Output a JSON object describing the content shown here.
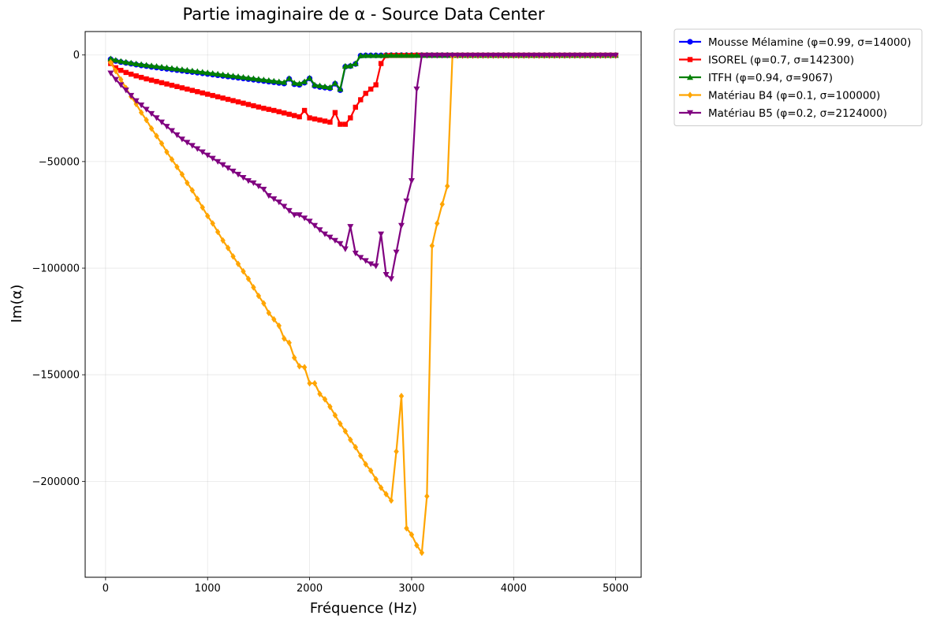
{
  "chart_data": {
    "type": "line",
    "title": "Partie imaginaire de α - Source Data Center",
    "xlabel": "Fréquence (Hz)",
    "ylabel": "Im(α)",
    "xlim": [
      -200,
      5250
    ],
    "ylim": [
      -245000,
      11000
    ],
    "xticks": [
      0,
      1000,
      2000,
      3000,
      4000,
      5000
    ],
    "yticks": [
      0,
      -50000,
      -100000,
      -150000,
      -200000
    ],
    "xtick_labels": [
      "0",
      "1000",
      "2000",
      "3000",
      "4000",
      "5000"
    ],
    "ytick_labels": [
      "0",
      "−50000",
      "−100000",
      "−150000",
      "−200000"
    ],
    "grid": true,
    "legend_position": "outside-top-right",
    "series": [
      {
        "name": "Mousse Mélamine (φ=0.99, σ=14000)",
        "color": "#0000ff",
        "marker": "circle",
        "x": [
          50,
          100,
          150,
          200,
          250,
          300,
          350,
          400,
          450,
          500,
          550,
          600,
          650,
          700,
          750,
          800,
          850,
          900,
          950,
          1000,
          1050,
          1100,
          1150,
          1200,
          1250,
          1300,
          1350,
          1400,
          1450,
          1500,
          1550,
          1600,
          1650,
          1700,
          1750,
          1800,
          1850,
          1900,
          1950,
          2000,
          2050,
          2100,
          2150,
          2200,
          2250,
          2300,
          2350,
          2400,
          2450,
          2500,
          2550,
          2600,
          2650,
          2700,
          2750,
          2800,
          2850,
          2900,
          2950,
          3000,
          3050,
          3100,
          3150,
          3200,
          3250,
          3300,
          3350,
          3400,
          3450,
          3500,
          3550,
          3600,
          3650,
          3700,
          3750,
          3800,
          3850,
          3900,
          3950,
          4000,
          4050,
          4100,
          4150,
          4200,
          4250,
          4300,
          4350,
          4400,
          4450,
          4500,
          4550,
          4600,
          4650,
          4700,
          4750,
          4800,
          4850,
          4900,
          4950,
          5000
        ],
        "y": [
          -2000,
          -2800,
          -3300,
          -3700,
          -4100,
          -4500,
          -4900,
          -5200,
          -5600,
          -5900,
          -6200,
          -6500,
          -6800,
          -7100,
          -7400,
          -7700,
          -8000,
          -8300,
          -8600,
          -8900,
          -9200,
          -9500,
          -9800,
          -10100,
          -10400,
          -10700,
          -11000,
          -11300,
          -11600,
          -11900,
          -12200,
          -12500,
          -12800,
          -13100,
          -13400,
          -11200,
          -13700,
          -14000,
          -13000,
          -11000,
          -14500,
          -15000,
          -15300,
          -15600,
          -13500,
          -16500,
          -5500,
          -5200,
          -4200,
          -300,
          -200,
          -200,
          -200,
          -200,
          -100,
          -100,
          -100,
          -100,
          -100,
          -100,
          -100,
          -100,
          -100,
          -100,
          -100,
          -100,
          -100,
          -100,
          -100,
          -100,
          -100,
          -100,
          -100,
          -100,
          -100,
          -100,
          -100,
          -100,
          -100,
          -100,
          -100,
          -100,
          -100,
          -100,
          -100,
          -100,
          -100,
          -100,
          -100,
          -100,
          -100,
          -100,
          -100,
          -100,
          -100,
          -100,
          -100,
          -100,
          -100,
          -100
        ]
      },
      {
        "name": "ISOREL (φ=0.7, σ=142300)",
        "color": "#ff0000",
        "marker": "square",
        "x": [
          50,
          100,
          150,
          200,
          250,
          300,
          350,
          400,
          450,
          500,
          550,
          600,
          650,
          700,
          750,
          800,
          850,
          900,
          950,
          1000,
          1050,
          1100,
          1150,
          1200,
          1250,
          1300,
          1350,
          1400,
          1450,
          1500,
          1550,
          1600,
          1650,
          1700,
          1750,
          1800,
          1850,
          1900,
          1950,
          2000,
          2050,
          2100,
          2150,
          2200,
          2250,
          2300,
          2350,
          2400,
          2450,
          2500,
          2550,
          2600,
          2650,
          2700,
          2750,
          2800,
          2850,
          2900,
          2950,
          3000,
          3050,
          3100,
          3150,
          3200,
          3250,
          3300,
          3350,
          3400,
          3450,
          3500,
          3550,
          3600,
          3650,
          3700,
          3750,
          3800,
          3850,
          3900,
          3950,
          4000,
          4050,
          4100,
          4150,
          4200,
          4250,
          4300,
          4350,
          4400,
          4450,
          4500,
          4550,
          4600,
          4650,
          4700,
          4750,
          4800,
          4850,
          4900,
          4950,
          5000
        ],
        "y": [
          -4000,
          -6000,
          -7200,
          -8200,
          -9000,
          -9800,
          -10500,
          -11200,
          -11800,
          -12400,
          -13000,
          -13600,
          -14200,
          -14800,
          -15400,
          -16000,
          -16600,
          -17200,
          -17800,
          -18400,
          -19000,
          -19600,
          -20200,
          -20800,
          -21400,
          -22000,
          -22600,
          -23200,
          -23800,
          -24400,
          -25000,
          -25500,
          -26000,
          -26600,
          -27200,
          -27800,
          -28400,
          -29000,
          -26000,
          -29500,
          -30000,
          -30500,
          -31000,
          -31500,
          -27000,
          -32500,
          -32500,
          -29500,
          -24500,
          -21000,
          -18000,
          -16000,
          -14000,
          -4000,
          -300,
          -200,
          -200,
          -200,
          -200,
          -200,
          -100,
          -100,
          -100,
          -100,
          -100,
          -100,
          -100,
          -100,
          -100,
          -100,
          -100,
          -100,
          -100,
          -100,
          -100,
          -100,
          -100,
          -100,
          -100,
          -100,
          -100,
          -100,
          -100,
          -100,
          -100,
          -100,
          -100,
          -100,
          -100,
          -100,
          -100,
          -100,
          -100,
          -100,
          -100,
          -100,
          -100,
          -100,
          -100,
          -100
        ]
      },
      {
        "name": "ITFH (φ=0.94, σ=9067)",
        "color": "#008000",
        "marker": "triangle-up",
        "x": [
          50,
          100,
          150,
          200,
          250,
          300,
          350,
          400,
          450,
          500,
          550,
          600,
          650,
          700,
          750,
          800,
          850,
          900,
          950,
          1000,
          1050,
          1100,
          1150,
          1200,
          1250,
          1300,
          1350,
          1400,
          1450,
          1500,
          1550,
          1600,
          1650,
          1700,
          1750,
          1800,
          1850,
          1900,
          1950,
          2000,
          2050,
          2100,
          2150,
          2200,
          2250,
          2300,
          2350,
          2400,
          2450,
          2500,
          2550,
          2600,
          2650,
          2700,
          2750,
          2800,
          2850,
          2900,
          2950,
          3000,
          3050,
          3100,
          3150,
          3200,
          3250,
          3300,
          3350,
          3400,
          3450,
          3500,
          3550,
          3600,
          3650,
          3700,
          3750,
          3800,
          3850,
          3900,
          3950,
          4000,
          4050,
          4100,
          4150,
          4200,
          4250,
          4300,
          4350,
          4400,
          4450,
          4500,
          4550,
          4600,
          4650,
          4700,
          4750,
          4800,
          4850,
          4900,
          4950,
          5000
        ],
        "y": [
          -1700,
          -2400,
          -2900,
          -3300,
          -3700,
          -4100,
          -4400,
          -4700,
          -5000,
          -5300,
          -5600,
          -5900,
          -6200,
          -6500,
          -6800,
          -7100,
          -7400,
          -7700,
          -8000,
          -8300,
          -8600,
          -8900,
          -9200,
          -9500,
          -9800,
          -10100,
          -10400,
          -10700,
          -11000,
          -11300,
          -11600,
          -11900,
          -12200,
          -12500,
          -12800,
          -11000,
          -13100,
          -13400,
          -12500,
          -10800,
          -14000,
          -14400,
          -14800,
          -15200,
          -13200,
          -16000,
          -5200,
          -5000,
          -4000,
          -300,
          -200,
          -200,
          -200,
          -200,
          -100,
          -100,
          -100,
          -100,
          -100,
          -100,
          -100,
          -100,
          -100,
          -100,
          -100,
          -100,
          -100,
          -100,
          -100,
          -100,
          -100,
          -100,
          -100,
          -100,
          -100,
          -100,
          -100,
          -100,
          -100,
          -100,
          -100,
          -100,
          -100,
          -100,
          -100,
          -100,
          -100,
          -100,
          -100,
          -100,
          -100,
          -100,
          -100,
          -100,
          -100,
          -100,
          -100,
          -100,
          -100,
          -100
        ]
      },
      {
        "name": "Matériau B4 (φ=0.1, σ=100000)",
        "color": "#ffa500",
        "marker": "diamond",
        "x": [
          50,
          100,
          150,
          200,
          250,
          300,
          350,
          400,
          450,
          500,
          550,
          600,
          650,
          700,
          750,
          800,
          850,
          900,
          950,
          1000,
          1050,
          1100,
          1150,
          1200,
          1250,
          1300,
          1350,
          1400,
          1450,
          1500,
          1550,
          1600,
          1650,
          1700,
          1750,
          1800,
          1850,
          1900,
          1950,
          2000,
          2050,
          2100,
          2150,
          2200,
          2250,
          2300,
          2350,
          2400,
          2450,
          2500,
          2550,
          2600,
          2650,
          2700,
          2750,
          2800,
          2850,
          2900,
          2950,
          3000,
          3050,
          3100,
          3150,
          3200,
          3250,
          3300,
          3350,
          3400,
          3450,
          3500,
          3550,
          3600,
          3650,
          3700,
          3750,
          3800,
          3850,
          3900,
          3950,
          4000,
          4050,
          4100,
          4150,
          4200,
          4250,
          4300,
          4350,
          4400,
          4450,
          4500,
          4550,
          4600,
          4650,
          4700,
          4750,
          4800,
          4850,
          4900,
          4950,
          5000
        ],
        "y": [
          -3500,
          -7500,
          -11500,
          -15500,
          -19500,
          -23000,
          -27000,
          -30500,
          -34500,
          -38000,
          -41500,
          -45500,
          -49000,
          -52500,
          -56000,
          -60000,
          -63500,
          -67500,
          -71500,
          -75500,
          -79000,
          -83000,
          -87000,
          -90500,
          -94500,
          -98000,
          -101500,
          -105000,
          -109000,
          -113000,
          -116500,
          -121000,
          -124000,
          -127000,
          -133000,
          -135000,
          -142000,
          -146000,
          -146500,
          -154000,
          -154000,
          -159000,
          -161500,
          -165000,
          -169000,
          -173000,
          -176500,
          -180500,
          -184000,
          -188000,
          -192000,
          -195000,
          -199000,
          -203000,
          -206000,
          -209000,
          -186000,
          -160000,
          -222000,
          -225000,
          -230000,
          -233500,
          -207000,
          -89500,
          -79000,
          -70000,
          -61500,
          -600,
          -300,
          -300,
          -300,
          -300,
          -300,
          -300,
          -300,
          -300,
          -300,
          -300,
          -300,
          -300,
          -300,
          -300,
          -300,
          -300,
          -300,
          -300,
          -300,
          -300,
          -300,
          -300,
          -300,
          -300,
          -300,
          -300,
          -300,
          -300,
          -300,
          -300,
          -300,
          -300
        ]
      },
      {
        "name": "Matériau B5 (φ=0.2, σ=2124000)",
        "color": "#800080",
        "marker": "triangle-down",
        "x": [
          50,
          100,
          150,
          200,
          250,
          300,
          350,
          400,
          450,
          500,
          550,
          600,
          650,
          700,
          750,
          800,
          850,
          900,
          950,
          1000,
          1050,
          1100,
          1150,
          1200,
          1250,
          1300,
          1350,
          1400,
          1450,
          1500,
          1550,
          1600,
          1650,
          1700,
          1750,
          1800,
          1850,
          1900,
          1950,
          2000,
          2050,
          2100,
          2150,
          2200,
          2250,
          2300,
          2350,
          2400,
          2450,
          2500,
          2550,
          2600,
          2650,
          2700,
          2750,
          2800,
          2850,
          2900,
          2950,
          3000,
          3050,
          3100,
          3150,
          3200,
          3250,
          3300,
          3350,
          3400,
          3450,
          3500,
          3550,
          3600,
          3650,
          3700,
          3750,
          3800,
          3850,
          3900,
          3950,
          4000,
          4050,
          4100,
          4150,
          4200,
          4250,
          4300,
          4350,
          4400,
          4450,
          4500,
          4550,
          4600,
          4650,
          4700,
          4750,
          4800,
          4850,
          4900,
          4950,
          5000
        ],
        "y": [
          -8500,
          -11500,
          -14000,
          -16500,
          -19000,
          -21500,
          -23500,
          -25500,
          -27500,
          -29500,
          -31500,
          -33500,
          -35500,
          -37500,
          -39500,
          -41000,
          -42500,
          -44000,
          -45500,
          -47000,
          -48500,
          -50000,
          -51500,
          -53000,
          -54500,
          -56000,
          -57500,
          -59000,
          -60000,
          -61500,
          -63000,
          -66000,
          -67500,
          -69000,
          -71000,
          -73000,
          -75000,
          -75000,
          -76500,
          -78000,
          -80000,
          -82000,
          -84000,
          -85500,
          -87000,
          -88500,
          -91000,
          -80500,
          -93000,
          -95000,
          -96500,
          -98000,
          -99000,
          -84000,
          -103000,
          -105000,
          -92500,
          -80000,
          -68500,
          -59000,
          -16000,
          -300,
          -200,
          -200,
          -200,
          -200,
          -200,
          -200,
          -200,
          -200,
          -200,
          -200,
          -200,
          -200,
          -200,
          -200,
          -200,
          -200,
          -200,
          -200,
          -200,
          -200,
          -200,
          -200,
          -200,
          -200,
          -200,
          -200,
          -200,
          -200,
          -200,
          -200,
          -200,
          -200,
          -200,
          -200,
          -200,
          -200,
          -200,
          -200
        ]
      }
    ]
  }
}
